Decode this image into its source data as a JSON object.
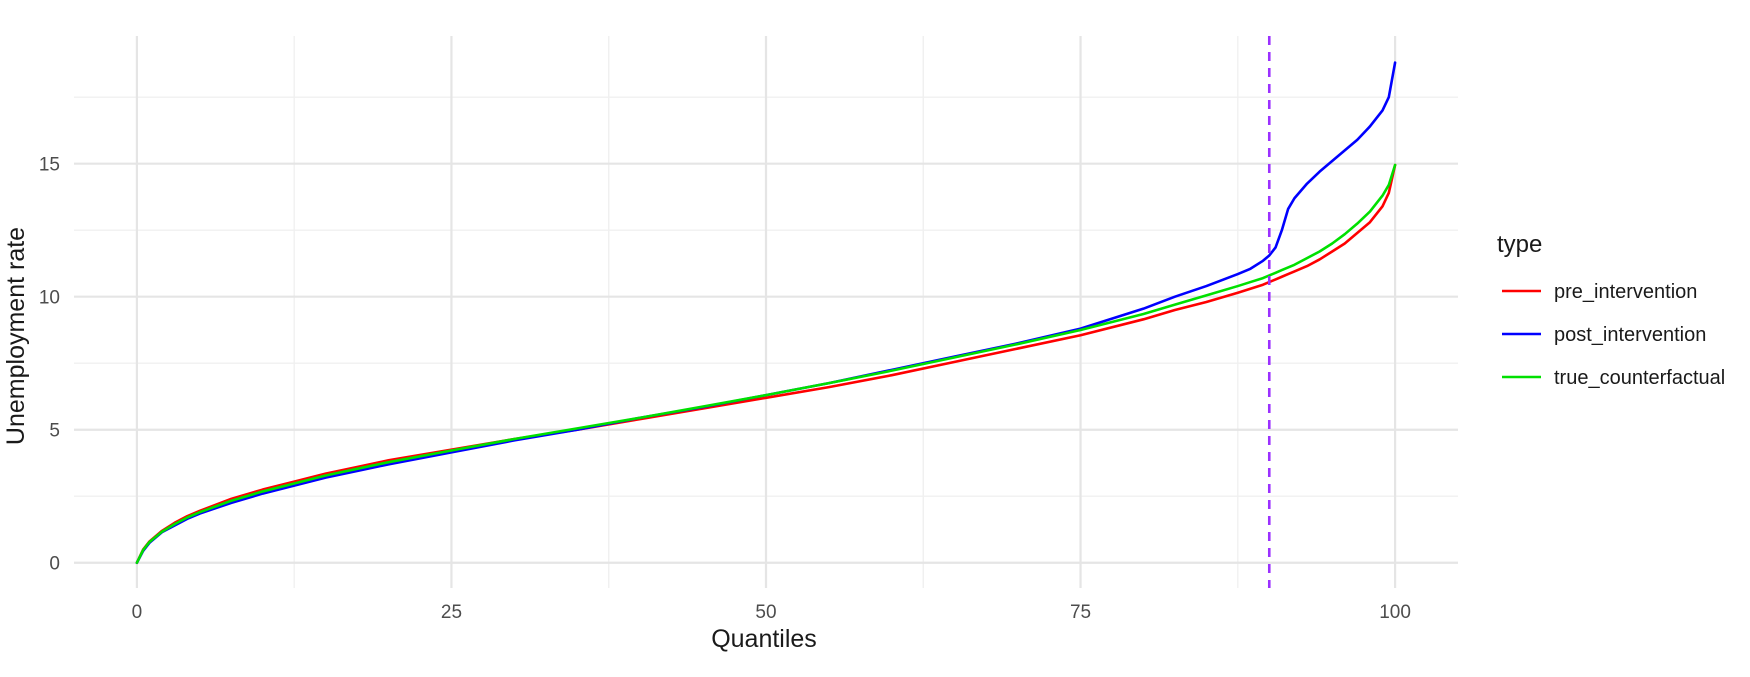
{
  "chart_data": {
    "type": "line",
    "title": "",
    "xlabel": "Quantiles",
    "ylabel": "Unemployment rate",
    "xlim": [
      -5,
      105
    ],
    "ylim": [
      -0.95,
      19.8
    ],
    "x_ticks": [
      0,
      25,
      50,
      75,
      100
    ],
    "y_ticks": [
      0,
      5,
      10,
      15
    ],
    "x_tick_labels": [
      "0",
      "25",
      "50",
      "75",
      "100"
    ],
    "y_tick_labels": [
      "0",
      "5",
      "10",
      "15"
    ],
    "grid": true,
    "legend": {
      "title": "type",
      "position": "right"
    },
    "reference_lines": [
      {
        "axis": "x",
        "value": 90,
        "style": "dashed",
        "color": "#9B30FF"
      }
    ],
    "x": [
      0,
      0.5,
      1,
      2,
      3,
      4,
      5,
      7.5,
      10,
      12.5,
      15,
      17.5,
      20,
      25,
      30,
      35,
      40,
      45,
      50,
      55,
      60,
      65,
      70,
      75,
      80,
      82.5,
      85,
      87.5,
      88.5,
      89.5,
      90,
      90.5,
      91,
      91.5,
      92,
      93,
      94,
      95,
      96,
      97,
      98,
      99,
      99.5,
      100
    ],
    "series": [
      {
        "name": "pre_intervention",
        "color": "#FF0000",
        "values": [
          0.0,
          0.5,
          0.8,
          1.2,
          1.5,
          1.75,
          1.95,
          2.4,
          2.75,
          3.05,
          3.35,
          3.6,
          3.85,
          4.25,
          4.65,
          5.0,
          5.4,
          5.8,
          6.2,
          6.6,
          7.05,
          7.55,
          8.05,
          8.55,
          9.15,
          9.5,
          9.8,
          10.15,
          10.3,
          10.45,
          10.55,
          10.65,
          10.75,
          10.85,
          10.95,
          11.15,
          11.4,
          11.7,
          12.0,
          12.4,
          12.8,
          13.4,
          13.9,
          14.95
        ]
      },
      {
        "name": "post_intervention",
        "color": "#0000FF",
        "values": [
          0.0,
          0.45,
          0.75,
          1.15,
          1.4,
          1.65,
          1.85,
          2.25,
          2.6,
          2.9,
          3.2,
          3.45,
          3.7,
          4.15,
          4.6,
          5.0,
          5.45,
          5.85,
          6.3,
          6.75,
          7.25,
          7.75,
          8.25,
          8.8,
          9.55,
          10.0,
          10.4,
          10.85,
          11.05,
          11.35,
          11.55,
          11.85,
          12.5,
          13.3,
          13.7,
          14.25,
          14.7,
          15.1,
          15.5,
          15.9,
          16.4,
          17.0,
          17.5,
          18.8
        ]
      },
      {
        "name": "true_counterfactual",
        "color": "#00E000",
        "values": [
          0.0,
          0.48,
          0.78,
          1.17,
          1.45,
          1.7,
          1.9,
          2.33,
          2.68,
          2.98,
          3.28,
          3.53,
          3.78,
          4.22,
          4.65,
          5.05,
          5.45,
          5.87,
          6.3,
          6.75,
          7.22,
          7.72,
          8.22,
          8.75,
          9.35,
          9.7,
          10.05,
          10.4,
          10.55,
          10.7,
          10.8,
          10.9,
          11.0,
          11.1,
          11.2,
          11.45,
          11.7,
          12.0,
          12.35,
          12.75,
          13.2,
          13.8,
          14.2,
          14.95
        ]
      }
    ]
  }
}
